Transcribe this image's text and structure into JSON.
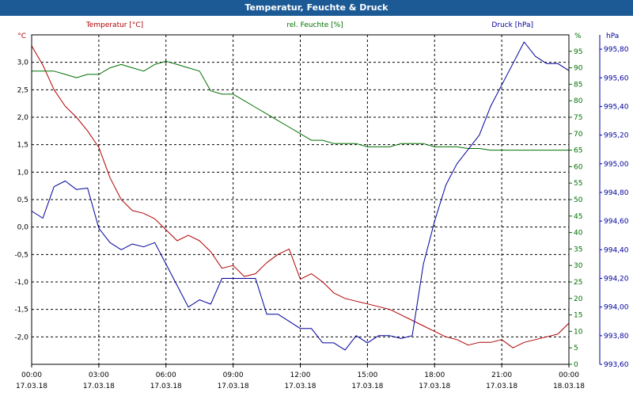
{
  "window": {
    "title": "Temperatur, Feuchte & Druck"
  },
  "chart_data": {
    "type": "line",
    "title": "Temperatur, Feuchte & Druck",
    "grid": true,
    "colors": {
      "temperature": "#b00000",
      "humidity": "#007000",
      "pressure": "#00009b",
      "grid": "#000000"
    },
    "x_ticks": [
      {
        "time": "00:00",
        "date": "17.03.18"
      },
      {
        "time": "03:00",
        "date": "17.03.18"
      },
      {
        "time": "06:00",
        "date": "17.03.18"
      },
      {
        "time": "09:00",
        "date": "17.03.18"
      },
      {
        "time": "12:00",
        "date": "17.03.18"
      },
      {
        "time": "15:00",
        "date": "17.03.18"
      },
      {
        "time": "18:00",
        "date": "17.03.18"
      },
      {
        "time": "21:00",
        "date": "17.03.18"
      },
      {
        "time": "00:00",
        "date": "18.03.18"
      }
    ],
    "axes": {
      "temperature": {
        "label": "Temperatur [°C]",
        "unit": "°C",
        "range": [
          -2.5,
          3.5
        ],
        "ticks": [
          "3,0",
          "2,5",
          "2,0",
          "1,5",
          "1,0",
          "0,5",
          "0,0",
          "-0,5",
          "-1,0",
          "-1,5",
          "-2,0"
        ],
        "tick_values": [
          3.0,
          2.5,
          2.0,
          1.5,
          1.0,
          0.5,
          0.0,
          -0.5,
          -1.0,
          -1.5,
          -2.0
        ]
      },
      "humidity": {
        "label": "rel. Feuchte [%]",
        "unit": "%",
        "range": [
          0,
          100
        ],
        "ticks": [
          "95",
          "90",
          "85",
          "80",
          "75",
          "70",
          "65",
          "60",
          "55",
          "50",
          "45",
          "40",
          "35",
          "30",
          "25",
          "20",
          "15",
          "10",
          "5",
          "0"
        ],
        "tick_values": [
          95,
          90,
          85,
          80,
          75,
          70,
          65,
          60,
          55,
          50,
          45,
          40,
          35,
          30,
          25,
          20,
          15,
          10,
          5,
          0
        ]
      },
      "pressure": {
        "label": "Druck [hPa]",
        "unit": "hPa",
        "range": [
          993.6,
          995.9
        ],
        "ticks": [
          "995,80",
          "995,60",
          "995,40",
          "995,20",
          "995,00",
          "994,80",
          "994,60",
          "994,40",
          "994,20",
          "994,00",
          "993,80",
          "993,60"
        ],
        "tick_values": [
          995.8,
          995.6,
          995.4,
          995.2,
          995.0,
          994.8,
          994.6,
          994.4,
          994.2,
          994.0,
          993.8,
          993.6
        ]
      }
    },
    "series": [
      {
        "name": "Temperatur [°C]",
        "axis": "temperature",
        "x_hours": [
          0,
          0.5,
          1,
          1.5,
          2,
          2.5,
          3,
          3.5,
          4,
          4.5,
          5,
          5.5,
          6,
          6.5,
          7,
          7.5,
          8,
          8.5,
          9,
          9.5,
          10,
          10.5,
          11,
          11.5,
          12,
          12.5,
          13,
          13.5,
          14,
          14.5,
          15,
          15.5,
          16,
          16.5,
          17,
          17.5,
          18,
          18.5,
          19,
          19.5,
          20,
          20.5,
          21,
          21.5,
          22,
          22.5,
          23,
          23.5,
          24
        ],
        "values": [
          3.3,
          2.95,
          2.5,
          2.2,
          2.0,
          1.75,
          1.45,
          0.9,
          0.5,
          0.3,
          0.25,
          0.15,
          -0.05,
          -0.25,
          -0.15,
          -0.25,
          -0.45,
          -0.75,
          -0.7,
          -0.9,
          -0.85,
          -0.65,
          -0.5,
          -0.4,
          -0.95,
          -0.85,
          -1.0,
          -1.2,
          -1.3,
          -1.35,
          -1.4,
          -1.45,
          -1.5,
          -1.6,
          -1.7,
          -1.8,
          -1.9,
          -2.0,
          -2.05,
          -2.15,
          -2.1,
          -2.1,
          -2.05,
          -2.2,
          -2.1,
          -2.05,
          -2.0,
          -1.95,
          -1.75
        ]
      },
      {
        "name": "rel. Feuchte [%]",
        "axis": "humidity",
        "x_hours": [
          0,
          0.5,
          1,
          1.5,
          2,
          2.5,
          3,
          3.5,
          4,
          4.5,
          5,
          5.5,
          6,
          6.5,
          7,
          7.5,
          8,
          8.5,
          9,
          9.5,
          10,
          10.5,
          11,
          11.5,
          12,
          12.5,
          13,
          13.5,
          14,
          14.5,
          15,
          15.5,
          16,
          16.5,
          17,
          17.5,
          18,
          18.5,
          19,
          19.5,
          20,
          20.5,
          21,
          21.5,
          22,
          22.5,
          23,
          23.5,
          24
        ],
        "values": [
          89,
          89,
          89,
          88,
          87,
          88,
          88,
          90,
          91,
          90,
          89,
          91,
          92,
          91,
          90,
          89,
          83,
          82,
          82,
          80,
          78,
          76,
          74,
          72,
          70,
          68,
          68,
          67,
          67,
          67,
          66,
          66,
          66,
          67,
          67,
          67,
          66,
          66,
          66,
          65.5,
          65.5,
          65,
          65,
          65,
          65,
          65,
          65,
          65,
          65
        ]
      },
      {
        "name": "Druck [hPa]",
        "axis": "pressure",
        "x_hours": [
          0,
          0.5,
          1,
          1.5,
          2,
          2.5,
          3,
          3.5,
          4,
          4.5,
          5,
          5.5,
          6,
          6.5,
          7,
          7.5,
          8,
          8.5,
          9,
          9.5,
          10,
          10.5,
          11,
          11.5,
          12,
          12.5,
          13,
          13.5,
          14,
          14.5,
          15,
          15.5,
          16,
          16.5,
          17,
          17.5,
          18,
          18.5,
          19,
          19.5,
          20,
          20.5,
          21,
          21.5,
          22,
          22.5,
          23,
          23.5,
          24
        ],
        "values": [
          994.67,
          994.62,
          994.84,
          994.88,
          994.82,
          994.83,
          994.55,
          994.45,
          994.4,
          994.44,
          994.42,
          994.45,
          994.3,
          994.15,
          994.0,
          994.05,
          994.02,
          994.2,
          994.2,
          994.2,
          994.2,
          993.95,
          993.95,
          993.9,
          993.85,
          993.85,
          993.75,
          993.75,
          993.7,
          993.8,
          993.75,
          993.8,
          993.8,
          993.78,
          993.8,
          994.3,
          994.6,
          994.85,
          995.0,
          995.1,
          995.2,
          995.4,
          995.55,
          995.7,
          995.85,
          995.75,
          995.7,
          995.7,
          995.65
        ]
      }
    ]
  }
}
